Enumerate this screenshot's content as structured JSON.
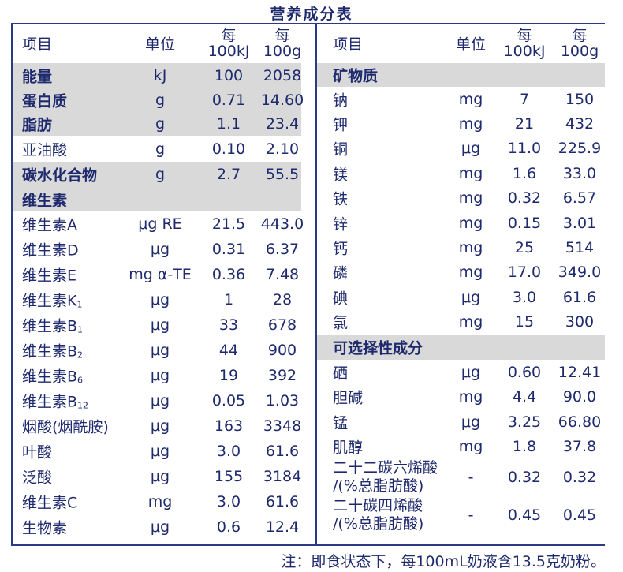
{
  "title": "营养成分表",
  "headers": {
    "item": "项目",
    "unit": "单位",
    "per_kj_1": "每",
    "per_kj_2": "100kJ",
    "per_g_1": "每",
    "per_g_2": "100g"
  },
  "left_rows": [
    {
      "name": "能量",
      "unit": "kJ",
      "per_100kj": "100",
      "per_100g": "2058",
      "bold": true,
      "grey": true
    },
    {
      "name": "蛋白质",
      "unit": "g",
      "per_100kj": "0.71",
      "per_100g": "14.60",
      "bold": true,
      "grey": true
    },
    {
      "name": "脂肪",
      "unit": "g",
      "per_100kj": "1.1",
      "per_100g": "23.4",
      "bold": true,
      "grey": true
    },
    {
      "name": "亚油酸",
      "unit": "g",
      "per_100kj": "0.10",
      "per_100g": "2.10"
    },
    {
      "name": "碳水化合物",
      "unit": "g",
      "per_100kj": "2.7",
      "per_100g": "55.5",
      "bold": true,
      "grey": true
    },
    {
      "name": "维生素",
      "bold": true,
      "grey": true,
      "section": true
    },
    {
      "name": "维生素A",
      "unit": "μg RE",
      "per_100kj": "21.5",
      "per_100g": "443.0"
    },
    {
      "name": "维生素D",
      "unit": "μg",
      "per_100kj": "0.31",
      "per_100g": "6.37"
    },
    {
      "name": "维生素E",
      "unit": "mg α-TE",
      "per_100kj": "0.36",
      "per_100g": "7.48"
    },
    {
      "name": "维生素K",
      "sub": "1",
      "unit": "μg",
      "per_100kj": "1",
      "per_100g": "28"
    },
    {
      "name": "维生素B",
      "sub": "1",
      "unit": "μg",
      "per_100kj": "33",
      "per_100g": "678"
    },
    {
      "name": "维生素B",
      "sub": "2",
      "unit": "μg",
      "per_100kj": "44",
      "per_100g": "900"
    },
    {
      "name": "维生素B",
      "sub": "6",
      "unit": "μg",
      "per_100kj": "19",
      "per_100g": "392"
    },
    {
      "name": "维生素B",
      "sub": "12",
      "unit": "μg",
      "per_100kj": "0.05",
      "per_100g": "1.03"
    },
    {
      "name": "烟酸(烟酰胺)",
      "unit": "μg",
      "per_100kj": "163",
      "per_100g": "3348"
    },
    {
      "name": "叶酸",
      "unit": "μg",
      "per_100kj": "3.0",
      "per_100g": "61.6"
    },
    {
      "name": "泛酸",
      "unit": "μg",
      "per_100kj": "155",
      "per_100g": "3184"
    },
    {
      "name": "维生素C",
      "unit": "mg",
      "per_100kj": "3.0",
      "per_100g": "61.6"
    },
    {
      "name": "生物素",
      "unit": "μg",
      "per_100kj": "0.6",
      "per_100g": "12.4"
    }
  ],
  "right_rows": [
    {
      "name": "矿物质",
      "bold": true,
      "grey": true,
      "section": true
    },
    {
      "name": "钠",
      "unit": "mg",
      "per_100kj": "7",
      "per_100g": "150"
    },
    {
      "name": "钾",
      "unit": "mg",
      "per_100kj": "21",
      "per_100g": "432"
    },
    {
      "name": "铜",
      "unit": "μg",
      "per_100kj": "11.0",
      "per_100g": "225.9"
    },
    {
      "name": "镁",
      "unit": "mg",
      "per_100kj": "1.6",
      "per_100g": "33.0"
    },
    {
      "name": "铁",
      "unit": "mg",
      "per_100kj": "0.32",
      "per_100g": "6.57"
    },
    {
      "name": "锌",
      "unit": "mg",
      "per_100kj": "0.15",
      "per_100g": "3.01"
    },
    {
      "name": "钙",
      "unit": "mg",
      "per_100kj": "25",
      "per_100g": "514"
    },
    {
      "name": "磷",
      "unit": "mg",
      "per_100kj": "17.0",
      "per_100g": "349.0"
    },
    {
      "name": "碘",
      "unit": "μg",
      "per_100kj": "3.0",
      "per_100g": "61.6"
    },
    {
      "name": "氯",
      "unit": "mg",
      "per_100kj": "15",
      "per_100g": "300"
    },
    {
      "name": "可选择性成分",
      "bold": true,
      "grey": true,
      "section": true
    },
    {
      "name": "硒",
      "unit": "μg",
      "per_100kj": "0.60",
      "per_100g": "12.41"
    },
    {
      "name": "胆碱",
      "unit": "mg",
      "per_100kj": "4.4",
      "per_100g": "90.0"
    },
    {
      "name": "锰",
      "unit": "μg",
      "per_100kj": "3.25",
      "per_100g": "66.80"
    },
    {
      "name": "肌醇",
      "unit": "mg",
      "per_100kj": "1.8",
      "per_100g": "37.8"
    },
    {
      "name": "二十二碳六烯酸",
      "name2": "/(%总脂肪酸)",
      "unit": "-",
      "per_100kj": "0.32",
      "per_100g": "0.32"
    },
    {
      "name": "二十碳四烯酸",
      "name2": "/(%总脂肪酸)",
      "unit": "-",
      "per_100kj": "0.45",
      "per_100g": "0.45"
    }
  ],
  "note": "注：即食状态下，每100mL奶液含13.5克奶粉。",
  "colors": {
    "text": "#1f2a6e",
    "band": "#d9d9d9",
    "rule": "#2c3a86"
  }
}
